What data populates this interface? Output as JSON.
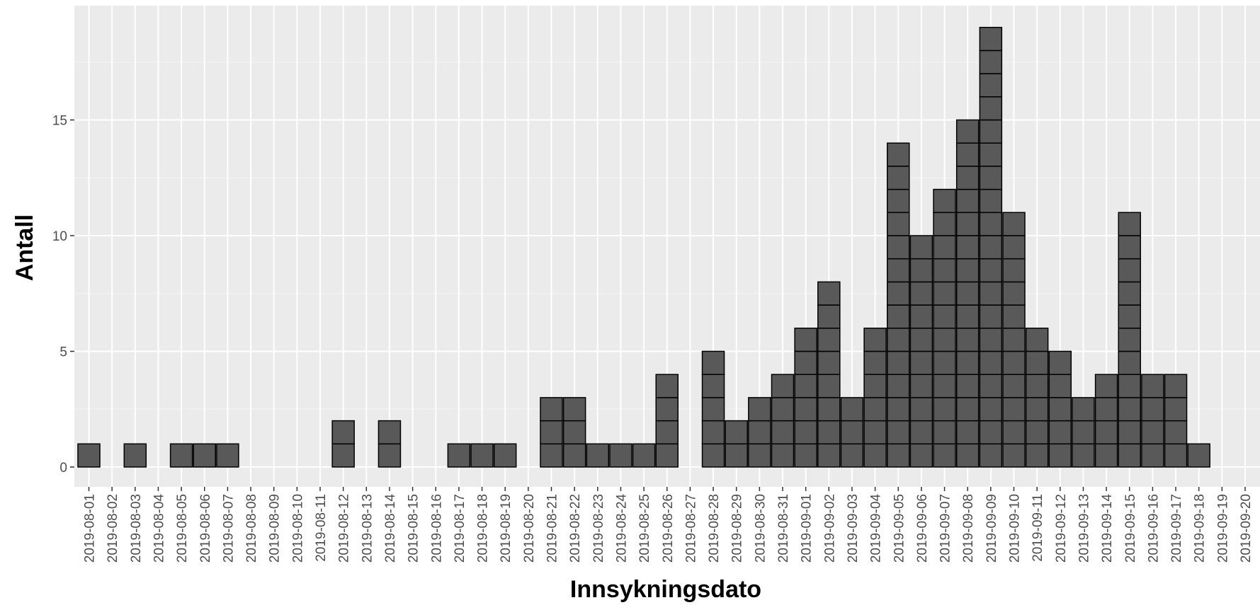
{
  "chart_data": {
    "type": "bar",
    "xlabel": "Innsykningsdato",
    "ylabel": "Antall",
    "ylim": [
      0,
      19
    ],
    "yticks": [
      0,
      5,
      10,
      15
    ],
    "grid": true,
    "bar_style": "stacked unit boxes",
    "colors": {
      "panel": "#ebebeb",
      "grid": "#ffffff",
      "bar_fill": "#595959",
      "bar_edge": "#000000"
    },
    "categories": [
      "2019-08-01",
      "2019-08-02",
      "2019-08-03",
      "2019-08-04",
      "2019-08-05",
      "2019-08-06",
      "2019-08-07",
      "2019-08-08",
      "2019-08-09",
      "2019-08-10",
      "2019-08-11",
      "2019-08-12",
      "2019-08-13",
      "2019-08-14",
      "2019-08-15",
      "2019-08-16",
      "2019-08-17",
      "2019-08-18",
      "2019-08-19",
      "2019-08-20",
      "2019-08-21",
      "2019-08-22",
      "2019-08-23",
      "2019-08-24",
      "2019-08-25",
      "2019-08-26",
      "2019-08-27",
      "2019-08-28",
      "2019-08-29",
      "2019-08-30",
      "2019-08-31",
      "2019-09-01",
      "2019-09-02",
      "2019-09-03",
      "2019-09-04",
      "2019-09-05",
      "2019-09-06",
      "2019-09-07",
      "2019-09-08",
      "2019-09-09",
      "2019-09-10",
      "2019-09-11",
      "2019-09-12",
      "2019-09-13",
      "2019-09-14",
      "2019-09-15",
      "2019-09-16",
      "2019-09-17",
      "2019-09-18",
      "2019-09-19",
      "2019-09-20"
    ],
    "values": [
      1,
      0,
      1,
      0,
      1,
      1,
      1,
      0,
      0,
      0,
      0,
      2,
      0,
      2,
      0,
      0,
      1,
      1,
      1,
      0,
      3,
      3,
      1,
      1,
      1,
      4,
      0,
      5,
      2,
      3,
      4,
      6,
      8,
      3,
      6,
      14,
      10,
      12,
      15,
      19,
      11,
      6,
      5,
      3,
      4,
      11,
      4,
      4,
      1,
      0,
      0
    ]
  }
}
